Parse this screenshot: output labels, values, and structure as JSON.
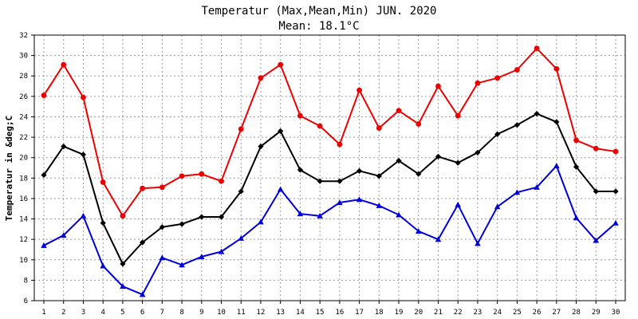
{
  "chart_data": {
    "type": "line",
    "title": "Temperatur (Max,Mean,Min) JUN. 2020",
    "subtitle": "Mean: 18.1°C",
    "ylabel": "Temperatur in &deg;C",
    "xlabel": "",
    "ylim": [
      6,
      32
    ],
    "yticks": [
      "6",
      "8",
      "10",
      "12",
      "14",
      "16",
      "18",
      "20",
      "22",
      "24",
      "26",
      "28",
      "30",
      "32"
    ],
    "categories": [
      "1",
      "2",
      "3",
      "4",
      "5",
      "6",
      "7",
      "8",
      "9",
      "10",
      "11",
      "12",
      "13",
      "14",
      "15",
      "16",
      "17",
      "18",
      "19",
      "20",
      "21",
      "22",
      "23",
      "24",
      "25",
      "26",
      "27",
      "28",
      "29",
      "30"
    ],
    "grid": true,
    "series": [
      {
        "color": "#ee0000",
        "marker": "circle",
        "values": [
          26.1,
          29.1,
          25.9,
          17.6,
          14.3,
          17.0,
          17.1,
          18.2,
          18.4,
          17.7,
          22.8,
          27.8,
          29.1,
          24.1,
          23.1,
          21.3,
          26.6,
          22.9,
          24.6,
          23.3,
          27.0,
          24.1,
          27.3,
          27.8,
          28.6,
          30.7,
          28.7,
          21.7,
          20.9,
          20.6
        ]
      },
      {
        "color": "#000000",
        "marker": "diamond",
        "values": [
          18.3,
          21.1,
          20.3,
          13.6,
          9.6,
          11.7,
          13.2,
          13.5,
          14.2,
          14.2,
          16.7,
          21.1,
          22.6,
          18.8,
          17.7,
          17.7,
          18.7,
          18.2,
          19.7,
          18.4,
          20.1,
          19.5,
          20.5,
          22.3,
          23.2,
          24.3,
          23.5,
          19.1,
          16.7,
          16.7
        ]
      },
      {
        "color": "#0000dd",
        "marker": "triangle",
        "values": [
          11.4,
          12.4,
          14.3,
          9.4,
          7.4,
          6.6,
          10.2,
          9.5,
          10.3,
          10.8,
          12.1,
          13.7,
          16.9,
          14.5,
          14.3,
          15.6,
          15.9,
          15.3,
          14.4,
          12.8,
          12.0,
          15.4,
          11.6,
          15.2,
          16.6,
          17.1,
          19.2,
          14.1,
          11.9,
          13.6
        ]
      }
    ]
  }
}
